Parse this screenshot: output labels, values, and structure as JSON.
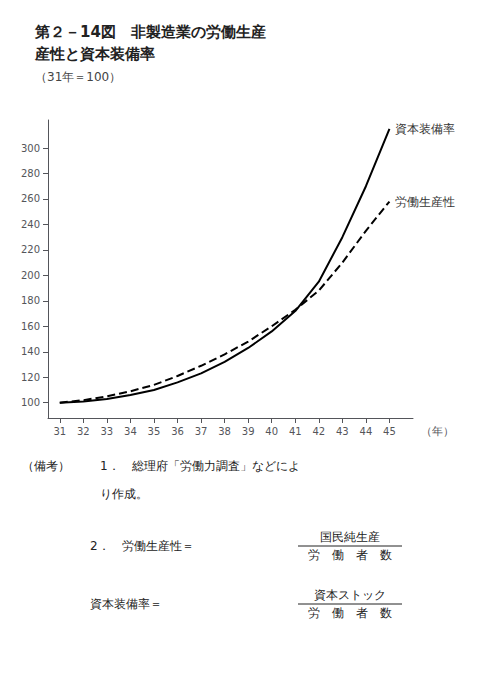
{
  "chart_data": {
    "type": "line",
    "title": "第２－14図　非製造業の労働生産\n産性と資本装備率",
    "subtitle": "（31年＝100）",
    "x_label": "（年）",
    "x": [
      31,
      32,
      33,
      34,
      35,
      36,
      37,
      38,
      39,
      40,
      41,
      42,
      43,
      44,
      45
    ],
    "series": [
      {
        "name": "資本装備率",
        "color": "#000000",
        "line_style": "solid",
        "values": [
          100,
          101,
          103,
          106,
          110,
          116,
          123,
          132,
          143,
          156,
          172,
          195,
          230,
          270,
          315
        ]
      },
      {
        "name": "労働生産性",
        "color": "#000000",
        "line_style": "dashed",
        "values": [
          100,
          102,
          105,
          109,
          114,
          121,
          129,
          138,
          148,
          160,
          173,
          188,
          210,
          235,
          258
        ]
      }
    ],
    "xlim": [
      30.5,
      46.0
    ],
    "xticks": [
      31,
      32,
      33,
      34,
      35,
      36,
      37,
      38,
      39,
      40,
      41,
      42,
      43,
      44,
      45
    ],
    "ylim": [
      88,
      322
    ],
    "yticks": [
      100,
      120,
      140,
      160,
      180,
      200,
      220,
      240,
      260,
      280,
      300
    ],
    "grid": false,
    "notes": {
      "heading": "（備考）",
      "lines": [
        "1．　総理府「労働力調査」などによ",
        "り作成。"
      ],
      "formulas": [
        {
          "left": "2．　労働生産性＝",
          "numerator": "国民純生産",
          "denominator": "労　働　者　数"
        },
        {
          "left": "資本装備率＝",
          "numerator": "資本ストック",
          "denominator": "労　働　者　数"
        }
      ]
    }
  }
}
